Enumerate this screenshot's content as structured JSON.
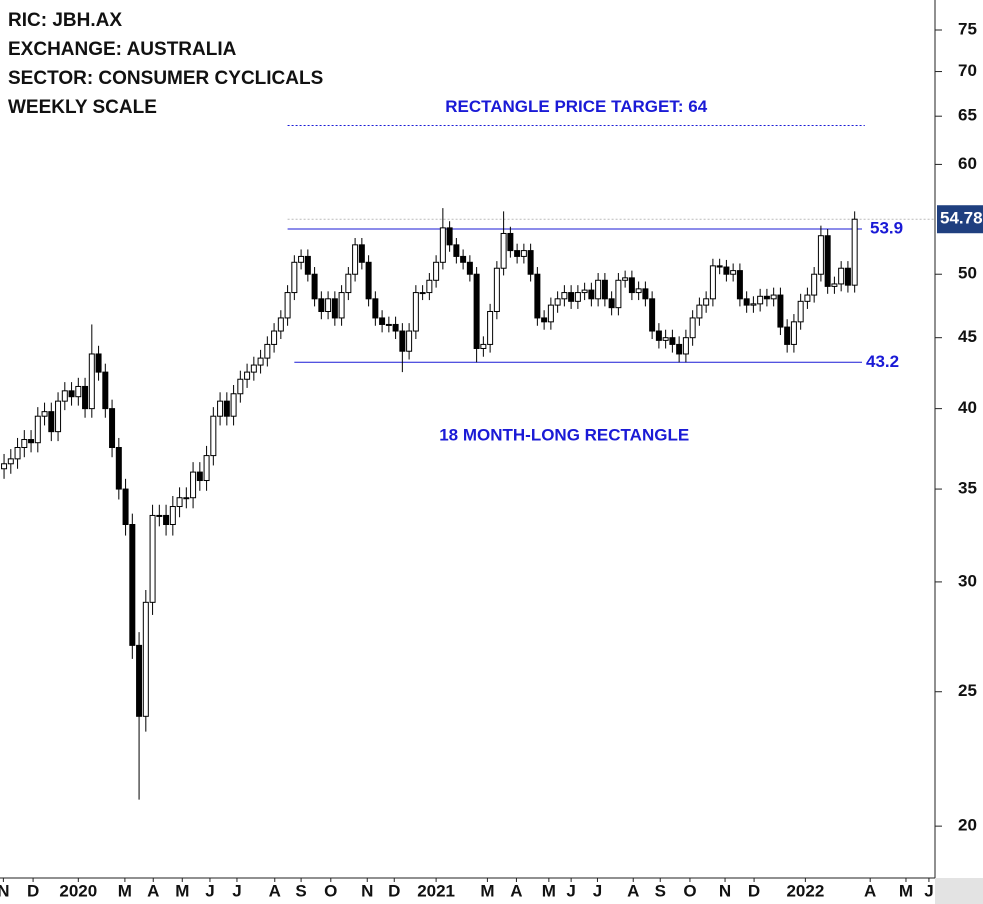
{
  "chart_data": {
    "type": "candlestick",
    "header": [
      "RIC: JBH.AX",
      "EXCHANGE: AUSTRALIA",
      "SECTOR: CONSUMER CYCLICALS",
      "WEEKLY SCALE"
    ],
    "log_scale": true,
    "grid": false,
    "ylim": [
      18.35,
      78.83
    ],
    "yticks": [
      20,
      25,
      30,
      35,
      40,
      45,
      50,
      60,
      65,
      70,
      75
    ],
    "xlim": [
      -0.6,
      137.9
    ],
    "xticks": [
      {
        "value": -0.1,
        "label": "N"
      },
      {
        "value": 4.3,
        "label": "D"
      },
      {
        "value": 11,
        "label": "2020"
      },
      {
        "value": 17.9,
        "label": "M"
      },
      {
        "value": 22.1,
        "label": "A"
      },
      {
        "value": 26.4,
        "label": "M"
      },
      {
        "value": 30.5,
        "label": "J"
      },
      {
        "value": 34.5,
        "label": "J"
      },
      {
        "value": 40.1,
        "label": "A"
      },
      {
        "value": 44,
        "label": "S"
      },
      {
        "value": 48.4,
        "label": "O"
      },
      {
        "value": 53.8,
        "label": "N"
      },
      {
        "value": 57.8,
        "label": "D"
      },
      {
        "value": 64,
        "label": "2021"
      },
      {
        "value": 71.6,
        "label": "M"
      },
      {
        "value": 75.9,
        "label": "A"
      },
      {
        "value": 80.7,
        "label": "M"
      },
      {
        "value": 84,
        "label": "J"
      },
      {
        "value": 87.9,
        "label": "J"
      },
      {
        "value": 93.2,
        "label": "A"
      },
      {
        "value": 97.2,
        "label": "S"
      },
      {
        "value": 101.6,
        "label": "O"
      },
      {
        "value": 106.8,
        "label": "N"
      },
      {
        "value": 111.1,
        "label": "D"
      },
      {
        "value": 118.7,
        "label": "2022"
      },
      {
        "value": 128.3,
        "label": "A"
      },
      {
        "value": 133.6,
        "label": "M"
      },
      {
        "value": 137,
        "label": "J"
      }
    ],
    "up_color": "#ffffff",
    "down_color": "#000000",
    "level_color": "#1a1ad6",
    "last_price_color": "#1f3f7f",
    "target": {
      "value": 64,
      "label": "RECTANGLE PRICE TARGET: 64"
    },
    "resistance": 53.9,
    "support": 43.2,
    "pattern_label": "18 MONTH-LONG RECTANGLE",
    "open": [
      36.2,
      36.5,
      36.8,
      37.5,
      38,
      37.8,
      39.5,
      39.8,
      38.5,
      40.5,
      41.2,
      40.8,
      41.5,
      40,
      43.8,
      42.5,
      40,
      37.5,
      35,
      33,
      27,
      24,
      29,
      33.5,
      33.5,
      33,
      34,
      34.5,
      34.5,
      36,
      35.5,
      37,
      39.5,
      40.5,
      39.5,
      41,
      42,
      42.5,
      43,
      43.5,
      44.5,
      45.5,
      46.5,
      48.5,
      51,
      51.5,
      50,
      48,
      47,
      48,
      46.5,
      48.5,
      50,
      52.5,
      51,
      48,
      46.5,
      46,
      46,
      45.5,
      44,
      45.5,
      48.5,
      48.5,
      49.5,
      51,
      54,
      52.5,
      51.5,
      51,
      50,
      44.2,
      44.5,
      47,
      50.5,
      53.5,
      52,
      51.5,
      52,
      50,
      46.5,
      46.2,
      47.5,
      48,
      48.5,
      47.8,
      48.5,
      48.7,
      48,
      49.5,
      48,
      47.3,
      49.5,
      49.7,
      48.5,
      48.8,
      48,
      45.5,
      44.8,
      45,
      44.5,
      43.8,
      45,
      46.5,
      47.5,
      48,
      50.7,
      50.6,
      50,
      50.3,
      48,
      47.5,
      47.6,
      48.2,
      48,
      48.3,
      45.8,
      44.5,
      46.2,
      47.8,
      48.3,
      50,
      53.3,
      49,
      49.2,
      50.5,
      49.1
    ],
    "high": [
      37.1,
      37.4,
      38.1,
      38.6,
      38.6,
      40.1,
      40.4,
      40.4,
      41.1,
      41.8,
      41.8,
      42.1,
      42.1,
      46,
      44.4,
      43.1,
      40.6,
      38.1,
      35.6,
      33.6,
      27.6,
      29.6,
      34.1,
      34.1,
      34.1,
      34.6,
      35.1,
      35.1,
      36.6,
      36.6,
      37.6,
      40.1,
      41.1,
      41.1,
      41.6,
      42.6,
      43.1,
      43.6,
      44.1,
      45.1,
      46.1,
      47.1,
      49.1,
      51.6,
      52.1,
      52.1,
      50.6,
      48.6,
      48.6,
      48.6,
      49.1,
      50.6,
      53.1,
      53.1,
      51.6,
      48.6,
      47.1,
      46.6,
      46.6,
      46.1,
      46.1,
      49.1,
      49.1,
      50.1,
      51.6,
      55.8,
      54.6,
      53.1,
      52.1,
      51.6,
      50.6,
      45.1,
      47.6,
      51.1,
      55.5,
      54.1,
      52.6,
      52.6,
      52.6,
      50.6,
      47.1,
      48.1,
      48.6,
      49.1,
      49.1,
      49.1,
      49.3,
      49.3,
      50.1,
      50.1,
      48.6,
      50.1,
      50.3,
      50.3,
      49.4,
      49.4,
      48.6,
      46.1,
      45.6,
      45.6,
      45.1,
      45.6,
      47.1,
      48.1,
      48.6,
      51.3,
      51.3,
      51.2,
      50.9,
      50.9,
      48.6,
      48.2,
      48.8,
      48.8,
      48.9,
      48.9,
      46.4,
      46.8,
      48.4,
      48.9,
      50.6,
      54.2,
      53.9,
      49.8,
      51.1,
      51.1,
      55.5
    ],
    "low": [
      35.6,
      35.9,
      36.2,
      36.9,
      37.2,
      37.2,
      38.9,
      37.9,
      37.9,
      39.9,
      40.2,
      40.2,
      39.4,
      39.4,
      41.9,
      39.4,
      36.9,
      34.4,
      32.4,
      26.4,
      20.9,
      23.4,
      28.4,
      32.9,
      32.4,
      32.4,
      33.4,
      33.9,
      33.9,
      34.9,
      34.9,
      36.4,
      38.9,
      38.9,
      38.9,
      40.4,
      41.4,
      41.9,
      42.4,
      42.9,
      43.9,
      44.9,
      45.9,
      47.9,
      50.4,
      49.4,
      47.4,
      46.4,
      46.4,
      45.9,
      45.9,
      47.9,
      49.4,
      50.4,
      47.4,
      45.9,
      45.4,
      45.4,
      44.9,
      42.5,
      43.4,
      44.9,
      47.9,
      47.9,
      48.9,
      50.4,
      51.9,
      50.9,
      50.4,
      49.4,
      43.2,
      43.6,
      43.9,
      46.4,
      49.9,
      51.4,
      50.9,
      50.9,
      49.4,
      45.9,
      45.6,
      45.6,
      46.9,
      47.4,
      47.2,
      47.2,
      47.9,
      47.4,
      47.4,
      47.4,
      46.7,
      46.7,
      48.9,
      47.9,
      47.9,
      47.4,
      44.9,
      44.2,
      44.2,
      43.9,
      43.2,
      43.2,
      44.4,
      45.9,
      46.9,
      47.4,
      50,
      49.4,
      49.4,
      47.4,
      46.9,
      46.9,
      47,
      47.4,
      47.4,
      45.2,
      43.9,
      43.9,
      45.6,
      47.2,
      47.7,
      49.4,
      48.4,
      48.4,
      48.6,
      48.5,
      48.5
    ],
    "close": [
      36.5,
      36.8,
      37.5,
      38,
      37.8,
      39.5,
      39.8,
      38.5,
      40.5,
      41.2,
      40.8,
      41.5,
      40,
      43.8,
      42.5,
      40,
      37.5,
      35,
      33,
      27,
      24,
      29,
      33.5,
      33.5,
      33,
      34,
      34.5,
      34.5,
      36,
      35.5,
      37,
      39.5,
      40.5,
      39.5,
      41,
      42,
      42.5,
      43,
      43.5,
      44.5,
      45.5,
      46.5,
      48.5,
      51,
      51.5,
      50,
      48,
      47,
      48,
      46.5,
      48.5,
      50,
      52.5,
      51,
      48,
      46.5,
      46,
      46,
      45.5,
      44,
      45.5,
      48.5,
      48.5,
      49.5,
      51,
      54,
      52.5,
      51.5,
      51,
      50,
      44.2,
      44.5,
      47,
      50.5,
      53.5,
      52,
      51.5,
      52,
      50,
      46.5,
      46.2,
      47.5,
      48,
      48.5,
      47.8,
      48.5,
      48.7,
      48,
      49.5,
      48,
      47.3,
      49.5,
      49.7,
      48.5,
      48.8,
      48,
      45.5,
      44.8,
      45,
      44.5,
      43.8,
      45,
      46.5,
      47.5,
      48,
      50.7,
      50.6,
      50,
      50.3,
      48,
      47.5,
      47.6,
      48.2,
      48,
      48.3,
      45.8,
      44.5,
      46.2,
      47.8,
      48.3,
      50,
      53.3,
      49,
      49.2,
      50.5,
      49.1,
      54.78
    ]
  }
}
